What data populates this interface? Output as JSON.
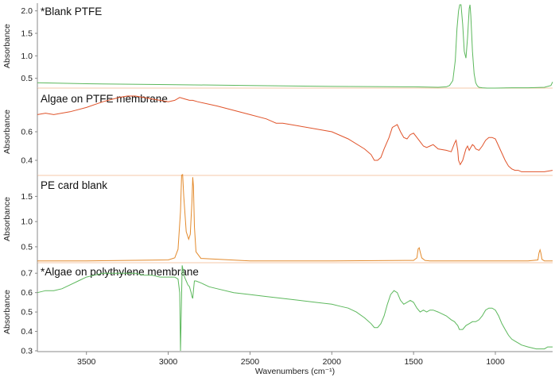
{
  "chart_data": {
    "type": "line",
    "xlabel": "Wavenumbers (cm⁻¹)",
    "x_ticks": [
      3500,
      3000,
      2500,
      2000,
      1500,
      1000
    ],
    "xlim": [
      3800,
      650
    ],
    "x_reversed": true,
    "panels": [
      {
        "title": "*Blank PTFE",
        "ylabel": "Absorbance",
        "ylim": [
          0.3,
          2.1
        ],
        "y_ticks": [
          "0.5",
          "1.0",
          "1.5",
          "2.0"
        ],
        "color": "#5cb85c",
        "series": [
          {
            "x": [
              3800,
              3500,
              3000,
              2500,
              2000,
              1500,
              1350,
              1300,
              1280,
              1260,
              1245,
              1235,
              1225,
              1218,
              1210,
              1200,
              1190,
              1180,
              1170,
              1160,
              1155,
              1150,
              1140,
              1130,
              1120,
              1110,
              1100,
              1080,
              1050,
              1000,
              900,
              800,
              700,
              660,
              650
            ],
            "y": [
              0.4,
              0.38,
              0.36,
              0.34,
              0.32,
              0.31,
              0.3,
              0.31,
              0.34,
              0.45,
              0.9,
              1.6,
              2.0,
              2.25,
              2.2,
              1.7,
              1.1,
              0.95,
              1.4,
              2.05,
              2.2,
              1.9,
              1.1,
              0.6,
              0.4,
              0.33,
              0.3,
              0.29,
              0.28,
              0.28,
              0.29,
              0.29,
              0.3,
              0.34,
              0.42
            ]
          }
        ]
      },
      {
        "title": "Algae on PTFE membrane",
        "ylabel": "Absorbance",
        "ylim": [
          0.3,
          0.9
        ],
        "y_ticks": [
          "0.4",
          "0.6"
        ],
        "color": "#e0532a",
        "series": [
          {
            "x": [
              3800,
              3750,
              3700,
              3600,
              3500,
              3400,
              3300,
              3250,
              3200,
              3100,
              3000,
              2960,
              2930,
              2900,
              2870,
              2850,
              2820,
              2700,
              2500,
              2400,
              2360,
              2340,
              2300,
              2200,
              2000,
              1900,
              1800,
              1760,
              1740,
              1720,
              1700,
              1680,
              1650,
              1630,
              1600,
              1580,
              1560,
              1540,
              1520,
              1500,
              1480,
              1460,
              1440,
              1420,
              1400,
              1380,
              1350,
              1300,
              1270,
              1250,
              1240,
              1230,
              1225,
              1215,
              1200,
              1180,
              1170,
              1160,
              1150,
              1140,
              1130,
              1120,
              1100,
              1080,
              1060,
              1040,
              1020,
              1000,
              980,
              960,
              940,
              920,
              900,
              880,
              860,
              840,
              800,
              750,
              700,
              650
            ],
            "y": [
              0.72,
              0.73,
              0.72,
              0.74,
              0.77,
              0.81,
              0.84,
              0.85,
              0.85,
              0.83,
              0.81,
              0.82,
              0.84,
              0.83,
              0.82,
              0.82,
              0.81,
              0.78,
              0.72,
              0.69,
              0.67,
              0.66,
              0.66,
              0.64,
              0.6,
              0.55,
              0.48,
              0.44,
              0.4,
              0.4,
              0.42,
              0.48,
              0.56,
              0.63,
              0.65,
              0.6,
              0.56,
              0.55,
              0.58,
              0.59,
              0.56,
              0.53,
              0.5,
              0.49,
              0.5,
              0.51,
              0.48,
              0.47,
              0.46,
              0.52,
              0.54,
              0.47,
              0.4,
              0.37,
              0.4,
              0.48,
              0.5,
              0.47,
              0.49,
              0.51,
              0.5,
              0.48,
              0.47,
              0.5,
              0.54,
              0.56,
              0.56,
              0.55,
              0.5,
              0.45,
              0.4,
              0.36,
              0.34,
              0.33,
              0.33,
              0.32,
              0.32,
              0.32,
              0.32,
              0.33
            ]
          }
        ]
      },
      {
        "title": "PE card blank",
        "ylabel": "Absorbance",
        "ylim": [
          0.2,
          1.9
        ],
        "y_ticks": [
          "0.5",
          "1.0",
          "1.5"
        ],
        "color": "#e38a2c",
        "series": [
          {
            "x": [
              3800,
              3500,
              3000,
              2960,
              2940,
              2925,
              2918,
              2912,
              2905,
              2890,
              2875,
              2865,
              2855,
              2850,
              2846,
              2840,
              2830,
              2800,
              2500,
              2000,
              1500,
              1480,
              1472,
              1465,
              1460,
              1450,
              1430,
              1400,
              1000,
              800,
              740,
              733,
              727,
              722,
              715,
              700,
              650
            ],
            "y": [
              0.22,
              0.22,
              0.24,
              0.28,
              0.45,
              1.2,
              1.92,
              1.95,
              1.5,
              0.8,
              0.65,
              0.75,
              1.4,
              1.88,
              1.7,
              0.9,
              0.4,
              0.27,
              0.22,
              0.22,
              0.23,
              0.28,
              0.46,
              0.48,
              0.4,
              0.28,
              0.23,
              0.22,
              0.22,
              0.22,
              0.24,
              0.38,
              0.44,
              0.38,
              0.25,
              0.22,
              0.22
            ]
          }
        ]
      },
      {
        "title": "*Algae on polythylene membrane",
        "ylabel": "Absorbance",
        "ylim": [
          0.3,
          0.75
        ],
        "y_ticks": [
          "0.3",
          "0.4",
          "0.5",
          "0.6",
          "0.7"
        ],
        "color": "#5cb85c",
        "series": [
          {
            "x": [
              3800,
              3750,
              3700,
              3650,
              3600,
              3550,
              3500,
              3450,
              3400,
              3350,
              3300,
              3250,
              3200,
              3150,
              3100,
              3050,
              3000,
              2960,
              2940,
              2930,
              2925,
              2920,
              2915,
              2910,
              2900,
              2890,
              2880,
              2870,
              2860,
              2855,
              2850,
              2845,
              2840,
              2830,
              2800,
              2750,
              2700,
              2600,
              2500,
              2400,
              2300,
              2200,
              2100,
              2000,
              1950,
              1900,
              1850,
              1800,
              1760,
              1740,
              1720,
              1700,
              1680,
              1660,
              1640,
              1620,
              1600,
              1580,
              1560,
              1540,
              1520,
              1500,
              1480,
              1460,
              1440,
              1420,
              1400,
              1380,
              1350,
              1300,
              1270,
              1250,
              1240,
              1230,
              1220,
              1200,
              1180,
              1160,
              1140,
              1120,
              1100,
              1080,
              1060,
              1040,
              1020,
              1000,
              980,
              960,
              940,
              920,
              900,
              880,
              860,
              840,
              800,
              750,
              700,
              680,
              650
            ],
            "y": [
              0.6,
              0.61,
              0.61,
              0.62,
              0.64,
              0.66,
              0.68,
              0.69,
              0.7,
              0.7,
              0.7,
              0.7,
              0.7,
              0.69,
              0.69,
              0.68,
              0.68,
              0.68,
              0.67,
              0.6,
              0.3,
              0.5,
              0.74,
              0.72,
              0.68,
              0.66,
              0.64,
              0.63,
              0.6,
              0.58,
              0.57,
              0.62,
              0.66,
              0.66,
              0.65,
              0.63,
              0.62,
              0.6,
              0.59,
              0.58,
              0.57,
              0.56,
              0.55,
              0.54,
              0.53,
              0.52,
              0.5,
              0.47,
              0.44,
              0.42,
              0.42,
              0.44,
              0.48,
              0.54,
              0.59,
              0.61,
              0.6,
              0.56,
              0.54,
              0.55,
              0.56,
              0.55,
              0.52,
              0.5,
              0.51,
              0.5,
              0.51,
              0.51,
              0.5,
              0.48,
              0.46,
              0.45,
              0.44,
              0.43,
              0.41,
              0.41,
              0.43,
              0.44,
              0.45,
              0.45,
              0.46,
              0.48,
              0.51,
              0.52,
              0.52,
              0.51,
              0.48,
              0.44,
              0.41,
              0.38,
              0.36,
              0.35,
              0.34,
              0.33,
              0.32,
              0.31,
              0.31,
              0.32,
              0.32
            ]
          }
        ]
      }
    ]
  }
}
